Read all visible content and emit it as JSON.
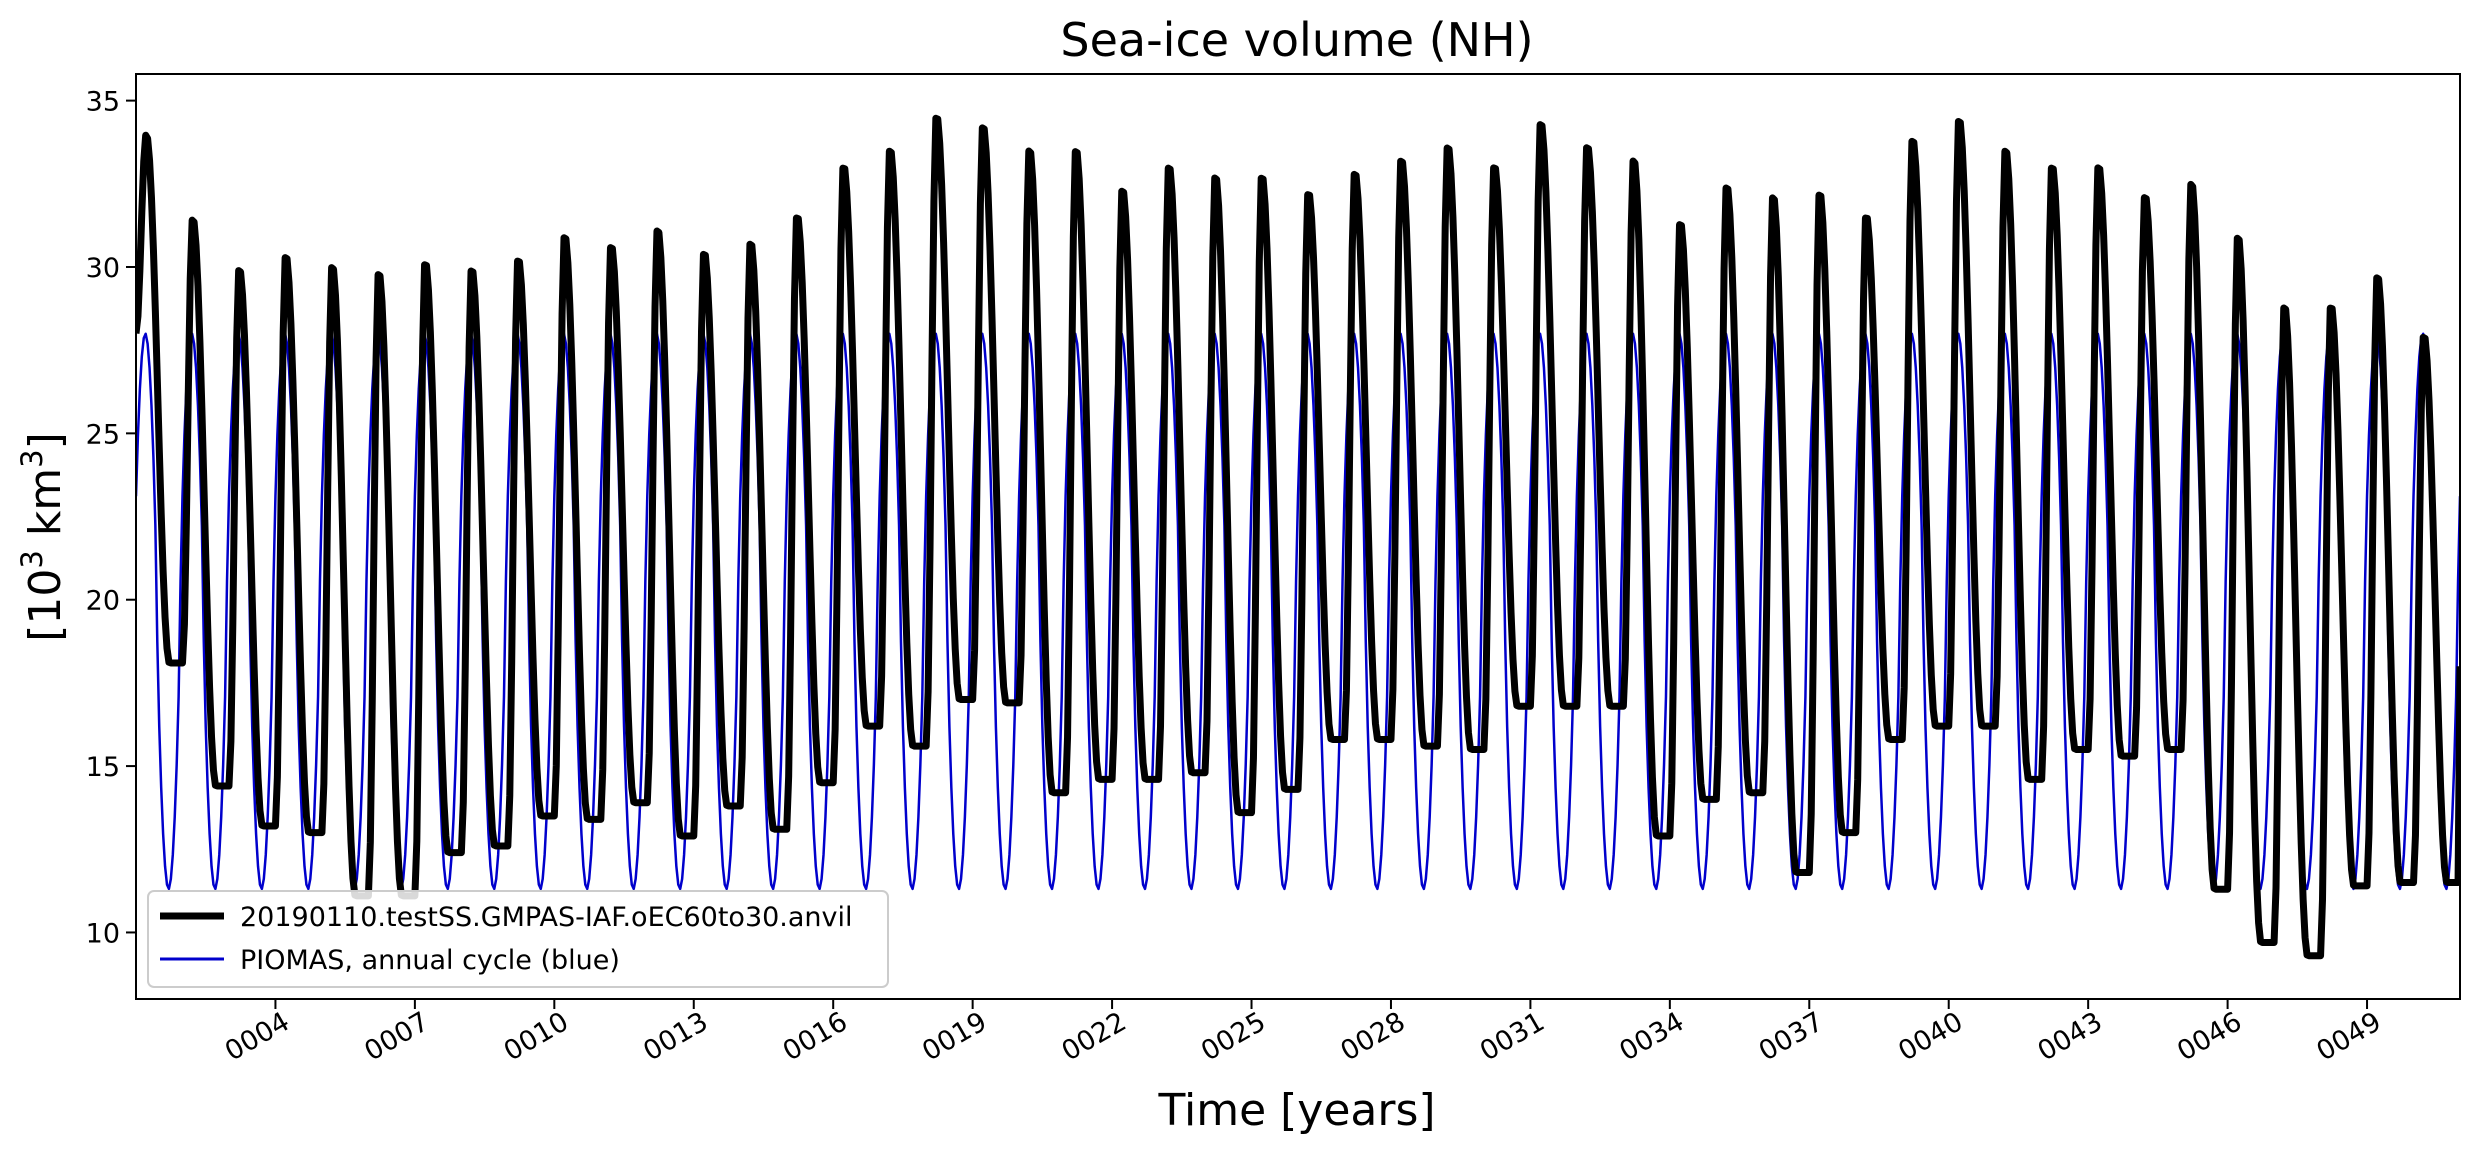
{
  "chart_data": {
    "type": "line",
    "title": "Sea-ice volume (NH)",
    "xlabel": "Time [years]",
    "ylabel_base": "[10",
    "ylabel_sup1": "3",
    "ylabel_mid": " km",
    "ylabel_sup2": "3",
    "ylabel_end": "]",
    "xlim": [
      1.0,
      51.0
    ],
    "ylim": [
      8.0,
      35.8
    ],
    "x_ticks": [
      4,
      7,
      10,
      13,
      16,
      19,
      22,
      25,
      28,
      31,
      34,
      37,
      40,
      43,
      46,
      49
    ],
    "x_tick_labels": [
      "0004",
      "0007",
      "0010",
      "0013",
      "0016",
      "0019",
      "0022",
      "0025",
      "0028",
      "0031",
      "0034",
      "0037",
      "0040",
      "0043",
      "0046",
      "0049"
    ],
    "y_ticks": [
      10,
      15,
      20,
      25,
      30,
      35
    ],
    "y_tick_labels": [
      "10",
      "15",
      "20",
      "25",
      "30",
      "35"
    ],
    "grid": false,
    "legend_position": "lower-left",
    "series": [
      {
        "name": "20190110.testSS.GMPAS-IAF.oEC60to30.anvil",
        "color": "#000000",
        "annual_max": [
          34.0,
          31.5,
          30.0,
          30.4,
          30.1,
          29.9,
          30.2,
          30.0,
          30.3,
          31.0,
          30.7,
          31.2,
          30.5,
          30.8,
          31.6,
          33.1,
          33.6,
          34.6,
          34.3,
          33.6,
          33.6,
          32.4,
          33.1,
          32.8,
          32.8,
          32.3,
          32.9,
          33.3,
          33.7,
          33.1,
          34.4,
          33.7,
          33.3,
          31.4,
          32.5,
          32.2,
          32.3,
          31.6,
          33.9,
          34.5,
          33.6,
          33.1,
          33.1,
          32.2,
          32.6,
          31.0,
          28.9,
          28.9,
          29.8,
          28.0
        ],
        "annual_min": [
          18.1,
          14.4,
          13.2,
          13.0,
          11.1,
          11.1,
          12.4,
          12.6,
          13.5,
          13.4,
          13.9,
          12.9,
          13.8,
          13.1,
          14.5,
          16.2,
          15.6,
          17.0,
          16.9,
          14.2,
          14.6,
          14.6,
          14.8,
          13.6,
          14.3,
          15.8,
          15.8,
          15.6,
          15.5,
          16.8,
          16.8,
          16.8,
          12.9,
          14.0,
          14.2,
          11.8,
          13.0,
          15.8,
          16.2,
          16.2,
          14.6,
          15.5,
          15.3,
          15.5,
          11.3,
          9.7,
          9.3,
          11.4,
          11.5,
          11.5
        ]
      },
      {
        "name": "PIOMAS, annual cycle (blue)",
        "color": "#0000cc",
        "annual_max": 28.0,
        "annual_min": 11.3
      }
    ]
  }
}
